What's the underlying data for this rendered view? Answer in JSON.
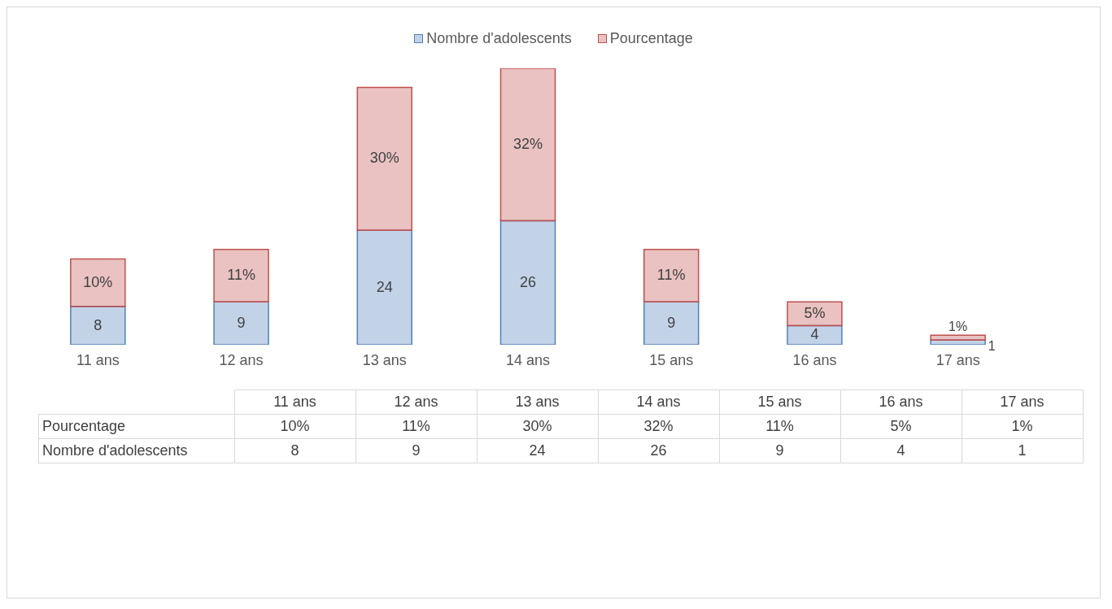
{
  "chart_data": {
    "type": "bar",
    "stacked": true,
    "categories": [
      "11 ans",
      "12 ans",
      "13 ans",
      "14 ans",
      "15 ans",
      "16 ans",
      "17 ans"
    ],
    "series": [
      {
        "name": "Nombre d'adolescents",
        "color": "#4f81bd",
        "values": [
          8,
          9,
          24,
          26,
          9,
          4,
          1
        ],
        "value_labels": [
          "8",
          "9",
          "24",
          "26",
          "9",
          "4",
          "1"
        ]
      },
      {
        "name": "Pourcentage",
        "color": "#c0504d",
        "values": [
          10,
          11,
          30,
          32,
          11,
          5,
          1
        ],
        "value_labels": [
          "10%",
          "11%",
          "30%",
          "32%",
          "11%",
          "5%",
          "1%"
        ]
      }
    ],
    "legend": "top"
  }
}
